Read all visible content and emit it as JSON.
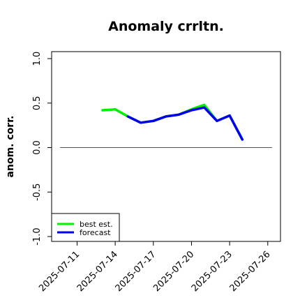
{
  "chart_data": {
    "type": "line",
    "title": "Anomaly crrltn.",
    "xlabel": "",
    "ylabel": "anom. corr.",
    "ylim": [
      -1.0,
      1.0
    ],
    "xlim": [
      "2025-07-09",
      "2025-07-27"
    ],
    "yticks": [
      -1.0,
      -0.5,
      0.0,
      0.5,
      1.0
    ],
    "ytick_labels": [
      "-1.0",
      "-0.5",
      "0.0",
      "0.5",
      "1.0"
    ],
    "xticks": [
      "2025-07-11",
      "2025-07-14",
      "2025-07-17",
      "2025-07-20",
      "2025-07-23",
      "2025-07-26"
    ],
    "highlight_xtick": "2025-07-17",
    "highlight_color": "#2e8b2e",
    "reference_line_y": 0.0,
    "grid": false,
    "legend_position": "lower-left",
    "series": [
      {
        "name": "best est.",
        "color": "#00ee00",
        "x": [
          "2025-07-13",
          "2025-07-14",
          "2025-07-15",
          "2025-07-16",
          "2025-07-17",
          "2025-07-18",
          "2025-07-19",
          "2025-07-20",
          "2025-07-21",
          "2025-07-22",
          "2025-07-23",
          "2025-07-24",
          "2025-07-25",
          "2025-07-26"
        ],
        "values": [
          0.42,
          0.43,
          0.35,
          0.28,
          0.3,
          0.35,
          0.37,
          0.43,
          0.48,
          0.3,
          0.36,
          0.09,
          null,
          null
        ]
      },
      {
        "name": "forecast",
        "color": "#0000ee",
        "x": [
          "2025-07-15",
          "2025-07-16",
          "2025-07-17",
          "2025-07-18",
          "2025-07-19",
          "2025-07-20",
          "2025-07-21",
          "2025-07-22",
          "2025-07-23",
          "2025-07-24",
          "2025-07-25",
          "2025-07-26"
        ],
        "values": [
          0.35,
          0.28,
          0.3,
          0.35,
          0.37,
          0.42,
          0.45,
          0.3,
          0.36,
          0.09,
          null,
          null
        ]
      }
    ]
  }
}
